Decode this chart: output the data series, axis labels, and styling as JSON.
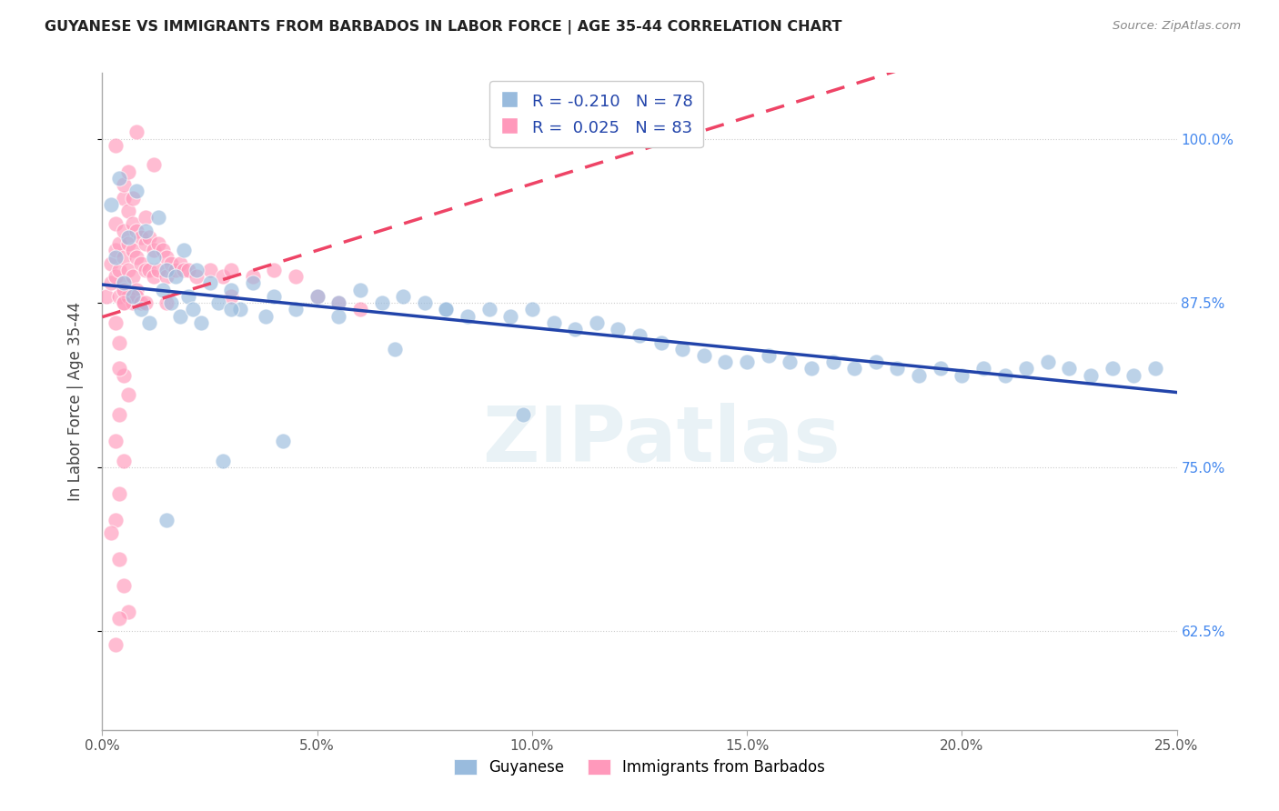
{
  "title": "GUYANESE VS IMMIGRANTS FROM BARBADOS IN LABOR FORCE | AGE 35-44 CORRELATION CHART",
  "source": "Source: ZipAtlas.com",
  "xlabel_vals": [
    0.0,
    5.0,
    10.0,
    15.0,
    20.0,
    25.0
  ],
  "ylabel_vals": [
    62.5,
    75.0,
    87.5,
    100.0
  ],
  "xlim": [
    0.0,
    25.0
  ],
  "ylim": [
    55.0,
    105.0
  ],
  "ylabel": "In Labor Force | Age 35-44",
  "blue_color": "#99BBDD",
  "pink_color": "#FF99BB",
  "blue_line_color": "#2244AA",
  "pink_line_color": "#EE4466",
  "watermark_text": "ZIPatlas",
  "blue_R": -0.21,
  "blue_N": 78,
  "pink_R": 0.025,
  "pink_N": 83,
  "guyanese_legend": "Guyanese",
  "barbados_legend": "Immigrants from Barbados",
  "blue_x": [
    0.2,
    0.3,
    0.4,
    0.5,
    0.6,
    0.7,
    0.8,
    0.9,
    1.0,
    1.1,
    1.2,
    1.3,
    1.4,
    1.5,
    1.6,
    1.7,
    1.8,
    1.9,
    2.0,
    2.1,
    2.2,
    2.3,
    2.5,
    2.7,
    3.0,
    3.2,
    3.5,
    3.8,
    4.0,
    4.5,
    5.0,
    5.5,
    6.0,
    6.5,
    7.0,
    7.5,
    8.0,
    8.5,
    9.0,
    9.5,
    10.0,
    10.5,
    11.0,
    11.5,
    12.0,
    12.5,
    13.0,
    13.5,
    14.0,
    14.5,
    15.0,
    15.5,
    16.0,
    16.5,
    17.0,
    17.5,
    18.0,
    18.5,
    19.0,
    19.5,
    20.0,
    20.5,
    21.0,
    21.5,
    22.0,
    22.5,
    23.0,
    23.5,
    24.0,
    24.5,
    1.5,
    2.8,
    4.2,
    6.8,
    9.8,
    3.0,
    5.5,
    8.0
  ],
  "blue_y": [
    95.0,
    91.0,
    97.0,
    89.0,
    92.5,
    88.0,
    96.0,
    87.0,
    93.0,
    86.0,
    91.0,
    94.0,
    88.5,
    90.0,
    87.5,
    89.5,
    86.5,
    91.5,
    88.0,
    87.0,
    90.0,
    86.0,
    89.0,
    87.5,
    88.5,
    87.0,
    89.0,
    86.5,
    88.0,
    87.0,
    88.0,
    87.5,
    88.5,
    87.5,
    88.0,
    87.5,
    87.0,
    86.5,
    87.0,
    86.5,
    87.0,
    86.0,
    85.5,
    86.0,
    85.5,
    85.0,
    84.5,
    84.0,
    83.5,
    83.0,
    83.0,
    83.5,
    83.0,
    82.5,
    83.0,
    82.5,
    83.0,
    82.5,
    82.0,
    82.5,
    82.0,
    82.5,
    82.0,
    82.5,
    83.0,
    82.5,
    82.0,
    82.5,
    82.0,
    82.5,
    71.0,
    75.5,
    77.0,
    84.0,
    79.0,
    87.0,
    86.5,
    87.0
  ],
  "pink_x": [
    0.1,
    0.2,
    0.2,
    0.3,
    0.3,
    0.3,
    0.4,
    0.4,
    0.5,
    0.5,
    0.5,
    0.5,
    0.6,
    0.6,
    0.6,
    0.7,
    0.7,
    0.7,
    0.8,
    0.8,
    0.8,
    0.9,
    0.9,
    1.0,
    1.0,
    1.0,
    1.1,
    1.1,
    1.2,
    1.2,
    1.3,
    1.3,
    1.4,
    1.5,
    1.5,
    1.6,
    1.7,
    1.8,
    1.9,
    2.0,
    2.2,
    2.5,
    2.8,
    3.0,
    3.5,
    4.0,
    4.5,
    5.0,
    5.5,
    6.0,
    0.4,
    0.5,
    0.6,
    0.7,
    0.8,
    0.9,
    1.0,
    0.5,
    0.6,
    0.7,
    0.3,
    0.4,
    0.5,
    0.6,
    0.4,
    0.3,
    0.5,
    0.4,
    0.3,
    0.2,
    0.4,
    0.5,
    0.6,
    3.0,
    1.2,
    0.8,
    0.4,
    0.3,
    1.5,
    0.5,
    0.3,
    0.4,
    0.5
  ],
  "pink_y": [
    88.0,
    90.5,
    89.0,
    93.5,
    91.5,
    89.5,
    92.0,
    90.0,
    95.5,
    93.0,
    91.0,
    89.0,
    94.5,
    92.0,
    90.0,
    93.5,
    91.5,
    89.5,
    93.0,
    91.0,
    88.5,
    92.5,
    90.5,
    94.0,
    92.0,
    90.0,
    92.5,
    90.0,
    91.5,
    89.5,
    92.0,
    90.0,
    91.5,
    91.0,
    89.5,
    90.5,
    90.0,
    90.5,
    90.0,
    90.0,
    89.5,
    90.0,
    89.5,
    90.0,
    89.5,
    90.0,
    89.5,
    88.0,
    87.5,
    87.0,
    88.0,
    87.5,
    88.0,
    87.5,
    88.0,
    87.5,
    87.5,
    96.5,
    97.5,
    95.5,
    86.0,
    84.5,
    82.0,
    80.5,
    79.0,
    77.0,
    75.5,
    73.0,
    71.0,
    70.0,
    68.0,
    66.0,
    64.0,
    88.0,
    98.0,
    100.5,
    63.5,
    61.5,
    87.5,
    88.5,
    99.5,
    82.5,
    87.5
  ]
}
